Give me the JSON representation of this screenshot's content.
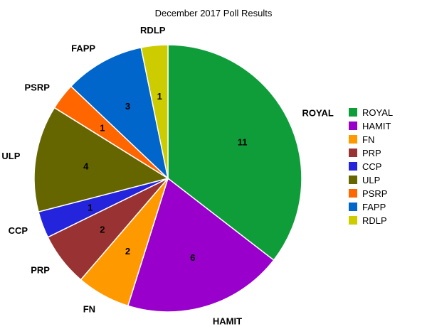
{
  "chart_data": {
    "type": "pie",
    "title": "December 2017 Poll Results",
    "legend_position": "right",
    "start_angle_deg": 0,
    "direction": "clockwise",
    "slices": [
      {
        "label": "ROYAL",
        "value": 11,
        "color": "#0f9d3a"
      },
      {
        "label": "HAMIT",
        "value": 6,
        "color": "#9900cc"
      },
      {
        "label": "FN",
        "value": 2,
        "color": "#ff9900"
      },
      {
        "label": "PRP",
        "value": 2,
        "color": "#993333"
      },
      {
        "label": "CCP",
        "value": 1,
        "color": "#2424dd"
      },
      {
        "label": "ULP",
        "value": 4,
        "color": "#666600"
      },
      {
        "label": "PSRP",
        "value": 1,
        "color": "#ff6600"
      },
      {
        "label": "FAPP",
        "value": 3,
        "color": "#0066cc"
      },
      {
        "label": "RDLP",
        "value": 1,
        "color": "#cccc00"
      }
    ]
  }
}
